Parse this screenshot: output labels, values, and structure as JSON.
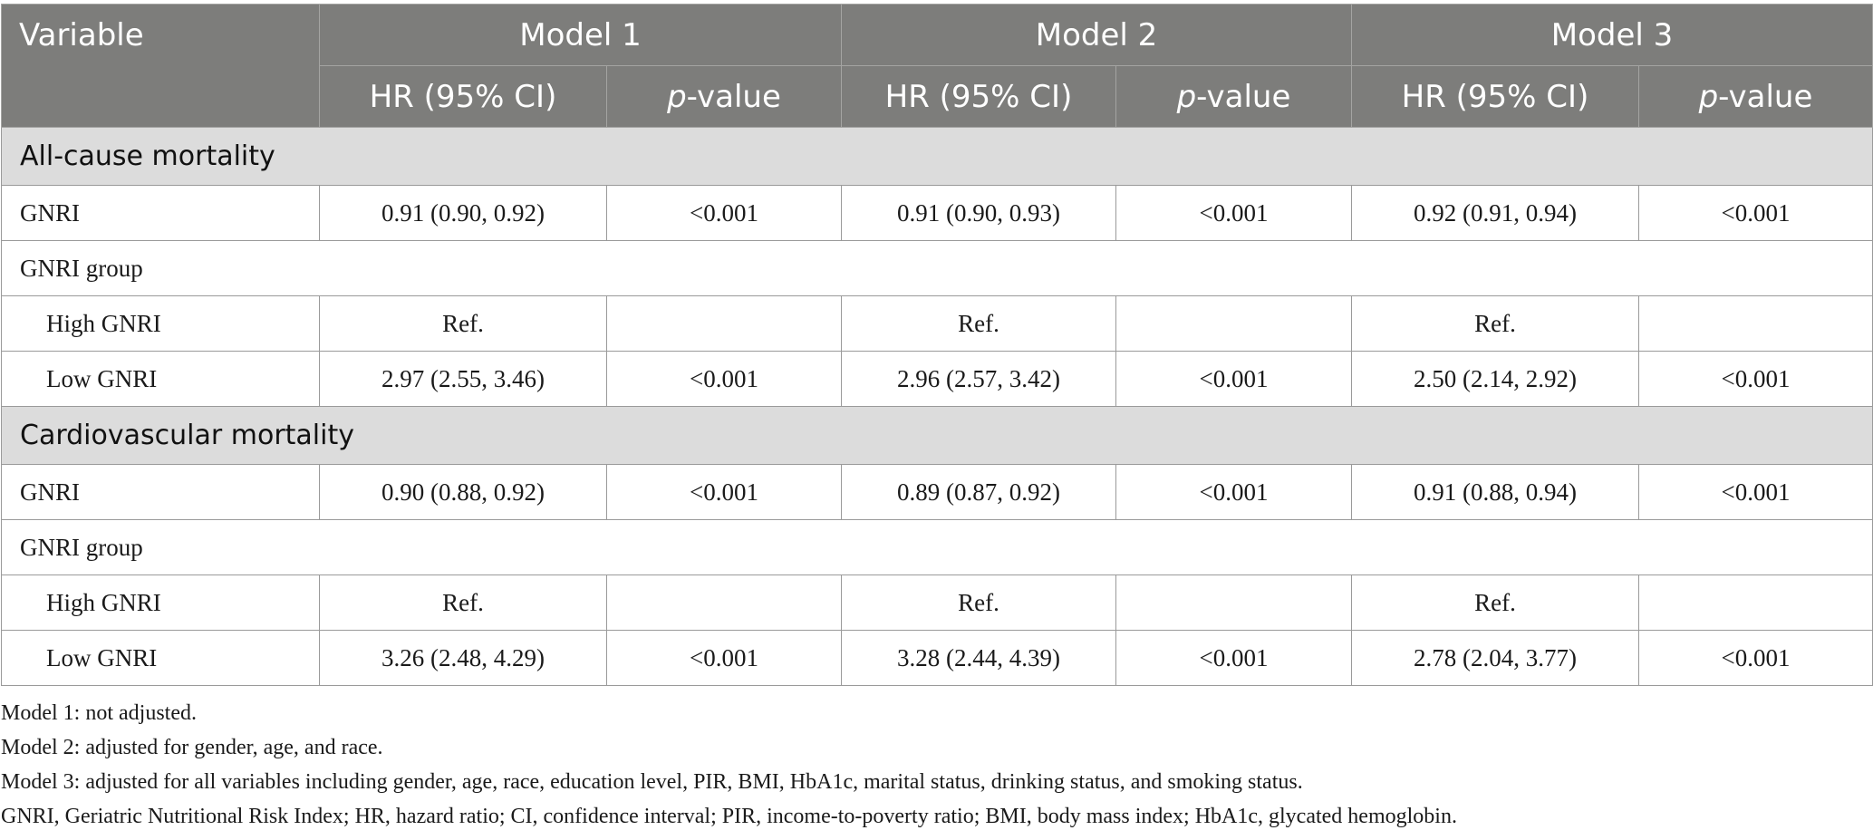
{
  "header": {
    "variable": "Variable",
    "models": [
      "Model 1",
      "Model 2",
      "Model 3"
    ],
    "hr_label": "HR (95% CI)",
    "p_italic": "p",
    "p_rest": "-value"
  },
  "sections": [
    {
      "title": "All-cause mortality",
      "rows": [
        {
          "label": "GNRI",
          "indent": false,
          "cells": [
            "0.91 (0.90, 0.92)",
            "<0.001",
            "0.91 (0.90, 0.93)",
            "<0.001",
            "0.92 (0.91, 0.94)",
            "<0.001"
          ]
        },
        {
          "label": "GNRI group",
          "indent": false,
          "cells": null
        },
        {
          "label": "High GNRI",
          "indent": true,
          "cells": [
            "Ref.",
            "",
            "Ref.",
            "",
            "Ref.",
            ""
          ]
        },
        {
          "label": "Low GNRI",
          "indent": true,
          "cells": [
            "2.97 (2.55, 3.46)",
            "<0.001",
            "2.96 (2.57, 3.42)",
            "<0.001",
            "2.50 (2.14, 2.92)",
            "<0.001"
          ]
        }
      ]
    },
    {
      "title": "Cardiovascular mortality",
      "rows": [
        {
          "label": "GNRI",
          "indent": false,
          "cells": [
            "0.90 (0.88, 0.92)",
            "<0.001",
            "0.89 (0.87, 0.92)",
            "<0.001",
            "0.91 (0.88, 0.94)",
            "<0.001"
          ]
        },
        {
          "label": "GNRI group",
          "indent": false,
          "cells": null
        },
        {
          "label": "High GNRI",
          "indent": true,
          "cells": [
            "Ref.",
            "",
            "Ref.",
            "",
            "Ref.",
            ""
          ]
        },
        {
          "label": "Low GNRI",
          "indent": true,
          "cells": [
            "3.26 (2.48, 4.29)",
            "<0.001",
            "3.28 (2.44, 4.39)",
            "<0.001",
            "2.78 (2.04, 3.77)",
            "<0.001"
          ]
        }
      ]
    }
  ],
  "footnotes": [
    "Model 1: not adjusted.",
    "Model 2: adjusted for gender, age, and race.",
    "Model 3: adjusted for all variables including gender, age, race, education level, PIR, BMI, HbA1c, marital status, drinking status, and smoking status.",
    "GNRI, Geriatric Nutritional Risk Index; HR, hazard ratio; CI, confidence interval; PIR, income-to-poverty ratio; BMI, body mass index; HbA1c, glycated hemoglobin."
  ]
}
